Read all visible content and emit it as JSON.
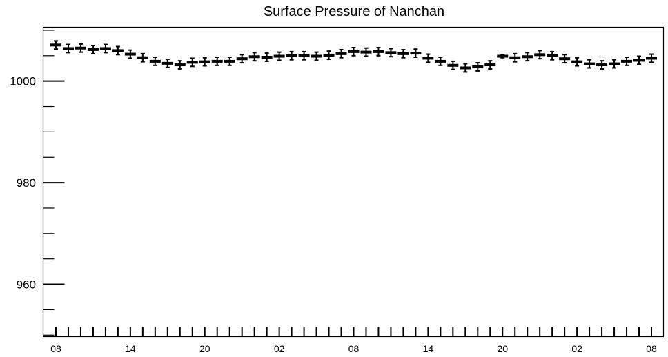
{
  "chart_data": {
    "type": "scatter",
    "title": "Surface Pressure of Nanchan",
    "xlabel": "",
    "ylabel": "",
    "ylim": [
      949.7,
      1010.6
    ],
    "y_ticks": [
      960,
      980,
      1000
    ],
    "x_tick_labels": [
      "08",
      "14",
      "20",
      "02",
      "08",
      "14",
      "20",
      "02",
      "08"
    ],
    "x_tick_label_hour_index": [
      0,
      6,
      12,
      18,
      24,
      30,
      36,
      42,
      48
    ],
    "x_hours": [
      0,
      1,
      2,
      3,
      4,
      5,
      6,
      7,
      8,
      9,
      10,
      11,
      12,
      13,
      14,
      15,
      16,
      17,
      18,
      19,
      20,
      21,
      22,
      23,
      24,
      25,
      26,
      27,
      28,
      29,
      30,
      31,
      32,
      33,
      34,
      35,
      36,
      37,
      38,
      39,
      40,
      41,
      42,
      43,
      44,
      45,
      46,
      47,
      48
    ],
    "series": [
      {
        "marker": "horizontal-bar-with-errorbar",
        "values": [
          1007.1,
          1006.4,
          1006.5,
          1006.2,
          1006.4,
          1006.0,
          1005.3,
          1004.6,
          1003.9,
          1003.5,
          1003.2,
          1003.7,
          1003.8,
          1003.9,
          1003.9,
          1004.4,
          1004.8,
          1004.7,
          1004.9,
          1005.0,
          1005.0,
          1004.9,
          1005.1,
          1005.4,
          1005.8,
          1005.7,
          1005.8,
          1005.6,
          1005.4,
          1005.5,
          1004.5,
          1003.9,
          1003.1,
          1002.6,
          1002.8,
          1003.2,
          1004.9,
          1004.6,
          1004.8,
          1005.2,
          1005.0,
          1004.4,
          1003.8,
          1003.4,
          1003.2,
          1003.4,
          1003.9,
          1004.1,
          1004.5
        ],
        "errors": [
          0.8,
          0.8,
          0.8,
          0.8,
          0.8,
          0.8,
          0.8,
          0.8,
          0.8,
          0.8,
          0.8,
          0.8,
          0.8,
          0.8,
          0.8,
          0.8,
          0.8,
          0.8,
          0.8,
          0.8,
          0.8,
          0.8,
          0.8,
          0.8,
          0.8,
          0.8,
          0.8,
          0.8,
          0.8,
          0.8,
          0.8,
          0.8,
          0.8,
          0.8,
          0.8,
          0.8,
          0.3,
          0.8,
          0.8,
          0.8,
          0.8,
          0.8,
          0.8,
          0.8,
          0.8,
          0.8,
          0.8,
          0.8,
          0.8
        ]
      }
    ],
    "grid": false,
    "legend": "none",
    "colors": {
      "marker": "#000000",
      "axis": "#000000",
      "background": "#ffffff"
    }
  }
}
